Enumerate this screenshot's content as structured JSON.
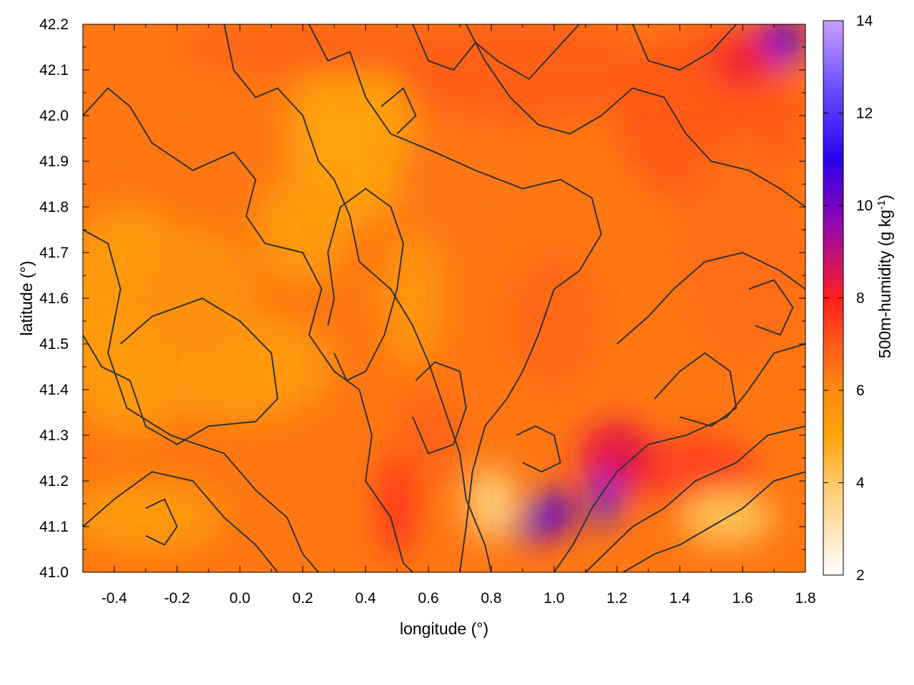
{
  "chart_data": {
    "type": "heatmap",
    "title": "",
    "xlabel": "longitude (°)",
    "ylabel": "latitude (°)",
    "colorbar_label": "500m-humidity (g kg",
    "colorbar_label_sup": "-1",
    "colorbar_label_end": ")",
    "xlim": [
      -0.5,
      1.8
    ],
    "ylim": [
      41.0,
      42.2
    ],
    "clim": [
      2,
      14
    ],
    "x_ticks": [
      "-0.4",
      "-0.2",
      "0.0",
      "0.2",
      "0.4",
      "0.6",
      "0.8",
      "1.0",
      "1.2",
      "1.4",
      "1.6",
      "1.8"
    ],
    "x_tick_values": [
      -0.4,
      -0.2,
      0.0,
      0.2,
      0.4,
      0.6,
      0.8,
      1.0,
      1.2,
      1.4,
      1.6,
      1.8
    ],
    "y_ticks": [
      "41.0",
      "41.1",
      "41.2",
      "41.3",
      "41.4",
      "41.5",
      "41.6",
      "41.7",
      "41.8",
      "41.9",
      "42.0",
      "42.1",
      "42.2"
    ],
    "y_tick_values": [
      41.0,
      41.1,
      41.2,
      41.3,
      41.4,
      41.5,
      41.6,
      41.7,
      41.8,
      41.9,
      42.0,
      42.1,
      42.2
    ],
    "colorbar_ticks": [
      "2",
      "4",
      "6",
      "8",
      "10",
      "12",
      "14"
    ],
    "colorbar_tick_values": [
      2,
      4,
      6,
      8,
      10,
      12,
      14
    ],
    "grid": true,
    "colormap": [
      {
        "v": 2,
        "color": "#ffffff"
      },
      {
        "v": 4,
        "color": "#ffc868"
      },
      {
        "v": 5,
        "color": "#ffa50a"
      },
      {
        "v": 6,
        "color": "#ff8a10"
      },
      {
        "v": 7,
        "color": "#ff5a18"
      },
      {
        "v": 8,
        "color": "#ff1e1e"
      },
      {
        "v": 9.5,
        "color": "#9a0aa8"
      },
      {
        "v": 11,
        "color": "#2a00f0"
      },
      {
        "v": 12.5,
        "color": "#6a4cff"
      },
      {
        "v": 14,
        "color": "#c8a0ff"
      }
    ],
    "contour_color": "#333333",
    "contours": [
      [
        [
          -0.5,
          41.75
        ],
        [
          -0.42,
          41.72
        ],
        [
          -0.38,
          41.62
        ],
        [
          -0.42,
          41.48
        ],
        [
          -0.36,
          41.36
        ],
        [
          -0.22,
          41.3
        ],
        [
          -0.05,
          41.26
        ],
        [
          0.05,
          41.18
        ],
        [
          0.15,
          41.12
        ],
        [
          0.2,
          41.04
        ],
        [
          0.25,
          41.0
        ]
      ],
      [
        [
          -0.5,
          41.1
        ],
        [
          -0.4,
          41.16
        ],
        [
          -0.28,
          41.22
        ],
        [
          -0.15,
          41.2
        ],
        [
          -0.05,
          41.12
        ],
        [
          0.05,
          41.06
        ],
        [
          0.12,
          41.0
        ]
      ],
      [
        [
          -0.5,
          41.52
        ],
        [
          -0.44,
          41.45
        ],
        [
          -0.35,
          41.42
        ],
        [
          -0.3,
          41.32
        ],
        [
          -0.2,
          41.28
        ],
        [
          -0.1,
          41.32
        ],
        [
          0.05,
          41.33
        ],
        [
          0.12,
          41.38
        ],
        [
          0.1,
          41.48
        ],
        [
          0.0,
          41.55
        ],
        [
          -0.12,
          41.6
        ],
        [
          -0.28,
          41.56
        ],
        [
          -0.38,
          41.5
        ]
      ],
      [
        [
          -0.5,
          42.0
        ],
        [
          -0.42,
          42.06
        ],
        [
          -0.35,
          42.02
        ],
        [
          -0.28,
          41.94
        ],
        [
          -0.15,
          41.88
        ],
        [
          -0.02,
          41.92
        ],
        [
          0.05,
          41.86
        ],
        [
          0.02,
          41.78
        ],
        [
          0.08,
          41.72
        ],
        [
          0.2,
          41.7
        ],
        [
          0.26,
          41.62
        ],
        [
          0.22,
          41.52
        ],
        [
          0.3,
          41.44
        ],
        [
          0.38,
          41.4
        ],
        [
          0.42,
          41.3
        ],
        [
          0.4,
          41.2
        ],
        [
          0.48,
          41.12
        ],
        [
          0.52,
          41.02
        ],
        [
          0.55,
          41.0
        ]
      ],
      [
        [
          -0.05,
          42.2
        ],
        [
          -0.02,
          42.1
        ],
        [
          0.05,
          42.04
        ],
        [
          0.12,
          42.06
        ],
        [
          0.2,
          42.0
        ],
        [
          0.25,
          41.9
        ],
        [
          0.3,
          41.86
        ],
        [
          0.35,
          41.78
        ],
        [
          0.38,
          41.68
        ],
        [
          0.48,
          41.62
        ],
        [
          0.55,
          41.54
        ],
        [
          0.6,
          41.46
        ],
        [
          0.65,
          41.36
        ],
        [
          0.7,
          41.26
        ],
        [
          0.72,
          41.16
        ],
        [
          0.78,
          41.06
        ],
        [
          0.8,
          41.0
        ]
      ],
      [
        [
          0.22,
          42.2
        ],
        [
          0.28,
          42.12
        ],
        [
          0.35,
          42.14
        ],
        [
          0.4,
          42.04
        ],
        [
          0.48,
          41.96
        ],
        [
          0.62,
          41.92
        ],
        [
          0.75,
          41.88
        ],
        [
          0.9,
          41.84
        ],
        [
          1.02,
          41.86
        ],
        [
          1.12,
          41.82
        ],
        [
          1.15,
          41.74
        ],
        [
          1.08,
          41.66
        ],
        [
          1.0,
          41.62
        ],
        [
          0.95,
          41.52
        ],
        [
          0.9,
          41.44
        ],
        [
          0.85,
          41.38
        ],
        [
          0.78,
          41.32
        ],
        [
          0.74,
          41.22
        ],
        [
          0.72,
          41.1
        ],
        [
          0.7,
          41.0
        ]
      ],
      [
        [
          0.55,
          42.2
        ],
        [
          0.6,
          42.12
        ],
        [
          0.68,
          42.1
        ],
        [
          0.75,
          42.16
        ],
        [
          0.82,
          42.12
        ],
        [
          0.92,
          42.08
        ],
        [
          1.0,
          42.14
        ],
        [
          1.08,
          42.2
        ]
      ],
      [
        [
          0.72,
          42.2
        ],
        [
          0.78,
          42.12
        ],
        [
          0.86,
          42.04
        ],
        [
          0.95,
          41.98
        ],
        [
          1.05,
          41.96
        ],
        [
          1.15,
          42.0
        ],
        [
          1.25,
          42.06
        ],
        [
          1.35,
          42.04
        ],
        [
          1.42,
          41.96
        ],
        [
          1.5,
          41.9
        ],
        [
          1.62,
          41.88
        ],
        [
          1.72,
          41.84
        ],
        [
          1.8,
          41.8
        ]
      ],
      [
        [
          1.8,
          41.5
        ],
        [
          1.7,
          41.48
        ],
        [
          1.62,
          41.4
        ],
        [
          1.55,
          41.34
        ],
        [
          1.42,
          41.3
        ],
        [
          1.3,
          41.28
        ],
        [
          1.2,
          41.22
        ],
        [
          1.12,
          41.14
        ],
        [
          1.06,
          41.06
        ],
        [
          1.0,
          41.0
        ]
      ],
      [
        [
          1.8,
          41.22
        ],
        [
          1.7,
          41.2
        ],
        [
          1.6,
          41.14
        ],
        [
          1.5,
          41.1
        ],
        [
          1.4,
          41.06
        ],
        [
          1.32,
          41.04
        ],
        [
          1.22,
          41.0
        ]
      ],
      [
        [
          1.8,
          41.32
        ],
        [
          1.68,
          41.3
        ],
        [
          1.58,
          41.24
        ],
        [
          1.45,
          41.2
        ],
        [
          1.35,
          41.14
        ],
        [
          1.25,
          41.1
        ],
        [
          1.16,
          41.04
        ],
        [
          1.1,
          41.0
        ]
      ],
      [
        [
          1.2,
          41.5
        ],
        [
          1.3,
          41.56
        ],
        [
          1.38,
          41.62
        ],
        [
          1.48,
          41.68
        ],
        [
          1.6,
          41.7
        ],
        [
          1.72,
          41.66
        ],
        [
          1.8,
          41.62
        ]
      ],
      [
        [
          0.3,
          41.48
        ],
        [
          0.34,
          41.42
        ],
        [
          0.4,
          41.44
        ],
        [
          0.46,
          41.52
        ],
        [
          0.5,
          41.62
        ],
        [
          0.52,
          41.72
        ],
        [
          0.48,
          41.8
        ],
        [
          0.4,
          41.84
        ],
        [
          0.32,
          41.8
        ],
        [
          0.28,
          41.7
        ],
        [
          0.3,
          41.6
        ],
        [
          0.28,
          41.54
        ]
      ],
      [
        [
          0.55,
          41.34
        ],
        [
          0.6,
          41.26
        ],
        [
          0.68,
          41.28
        ],
        [
          0.72,
          41.36
        ],
        [
          0.7,
          41.44
        ],
        [
          0.62,
          41.46
        ],
        [
          0.56,
          41.42
        ]
      ],
      [
        [
          1.32,
          41.38
        ],
        [
          1.4,
          41.44
        ],
        [
          1.48,
          41.48
        ],
        [
          1.56,
          41.44
        ],
        [
          1.58,
          41.36
        ],
        [
          1.5,
          41.32
        ],
        [
          1.4,
          41.34
        ]
      ],
      [
        [
          0.88,
          41.3
        ],
        [
          0.94,
          41.32
        ],
        [
          1.0,
          41.3
        ],
        [
          1.02,
          41.24
        ],
        [
          0.96,
          41.22
        ],
        [
          0.9,
          41.24
        ]
      ],
      [
        [
          -0.3,
          41.14
        ],
        [
          -0.24,
          41.16
        ],
        [
          -0.2,
          41.1
        ],
        [
          -0.24,
          41.06
        ],
        [
          -0.3,
          41.08
        ]
      ],
      [
        [
          1.62,
          41.62
        ],
        [
          1.7,
          41.64
        ],
        [
          1.76,
          41.58
        ],
        [
          1.72,
          41.52
        ],
        [
          1.64,
          41.54
        ]
      ],
      [
        [
          0.45,
          42.02
        ],
        [
          0.52,
          42.06
        ],
        [
          0.56,
          42.0
        ],
        [
          0.5,
          41.96
        ]
      ],
      [
        [
          1.25,
          42.2
        ],
        [
          1.3,
          42.12
        ],
        [
          1.4,
          42.1
        ],
        [
          1.5,
          42.14
        ],
        [
          1.58,
          42.2
        ]
      ]
    ]
  }
}
